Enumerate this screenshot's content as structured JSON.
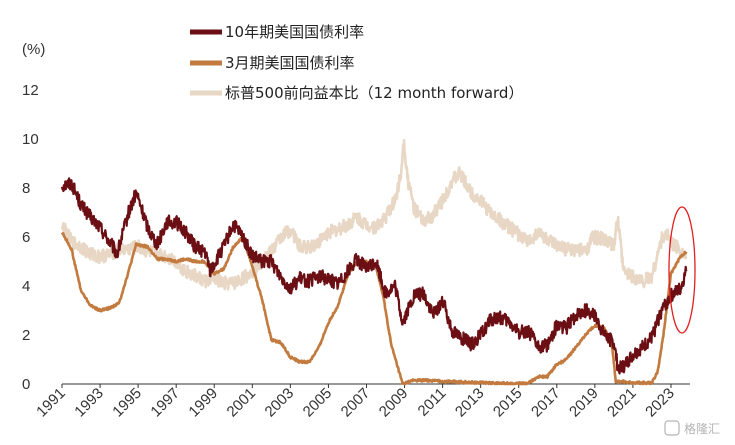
{
  "chart_data": {
    "type": "line",
    "unit_label": "(%)",
    "xlim": [
      1991,
      2024
    ],
    "ylim": [
      0,
      12
    ],
    "yticks": [
      0,
      2,
      4,
      6,
      8,
      10,
      12
    ],
    "xticks": [
      "1991",
      "1993",
      "1995",
      "1997",
      "1999",
      "2001",
      "2003",
      "2005",
      "2007",
      "2009",
      "2011",
      "2013",
      "2015",
      "2017",
      "2019",
      "2021",
      "2023"
    ],
    "legend_position": "top",
    "series": [
      {
        "name": "10年期美国国债利率",
        "color": "#6b0f14",
        "x": [
          1991.0,
          1991.5,
          1992.0,
          1992.5,
          1993.0,
          1993.5,
          1993.9,
          1994.5,
          1994.9,
          1995.5,
          1996.0,
          1996.5,
          1997.0,
          1997.5,
          1998.0,
          1998.5,
          1998.8,
          1999.5,
          2000.0,
          2000.5,
          2001.0,
          2001.5,
          2002.0,
          2002.5,
          2003.0,
          2003.5,
          2004.0,
          2004.5,
          2005.0,
          2005.5,
          2006.0,
          2006.5,
          2007.0,
          2007.5,
          2008.0,
          2008.5,
          2008.9,
          2009.5,
          2010.0,
          2010.5,
          2011.0,
          2011.5,
          2012.0,
          2012.5,
          2013.0,
          2013.5,
          2014.0,
          2014.5,
          2015.0,
          2015.5,
          2016.0,
          2016.5,
          2017.0,
          2017.5,
          2018.0,
          2018.5,
          2018.9,
          2019.5,
          2020.0,
          2020.2,
          2020.5,
          2021.0,
          2021.5,
          2022.0,
          2022.5,
          2023.0,
          2023.5,
          2023.8
        ],
        "values": [
          8.1,
          8.2,
          7.3,
          6.8,
          6.4,
          5.8,
          5.3,
          7.0,
          7.8,
          6.4,
          5.7,
          6.6,
          6.6,
          6.2,
          5.6,
          5.4,
          4.6,
          5.6,
          6.5,
          6.0,
          5.2,
          5.0,
          5.0,
          4.4,
          3.9,
          4.3,
          4.2,
          4.4,
          4.3,
          4.1,
          4.6,
          5.1,
          4.7,
          5.0,
          3.7,
          4.0,
          2.5,
          3.6,
          3.7,
          2.8,
          3.4,
          2.2,
          1.9,
          1.6,
          2.0,
          2.6,
          2.7,
          2.5,
          2.1,
          2.2,
          1.5,
          1.6,
          2.4,
          2.3,
          2.8,
          3.0,
          2.9,
          2.0,
          1.7,
          0.7,
          0.7,
          1.2,
          1.5,
          1.9,
          3.0,
          3.6,
          3.9,
          4.6
        ]
      },
      {
        "name": "3月期美国国债利率",
        "color": "#c27a3e",
        "x": [
          1991.0,
          1991.5,
          1992.0,
          1992.5,
          1993.0,
          1993.5,
          1994.0,
          1994.5,
          1994.9,
          1995.5,
          1996.0,
          1996.5,
          1997.0,
          1997.5,
          1998.0,
          1998.5,
          1999.0,
          1999.5,
          2000.0,
          2000.5,
          2001.0,
          2001.5,
          2002.0,
          2002.5,
          2003.0,
          2003.5,
          2004.0,
          2004.5,
          2005.0,
          2005.5,
          2006.0,
          2006.5,
          2007.0,
          2007.5,
          2007.9,
          2008.3,
          2008.9,
          2009.5,
          2010.0,
          2012.0,
          2014.0,
          2015.5,
          2016.0,
          2016.5,
          2017.0,
          2017.5,
          2018.0,
          2018.5,
          2019.0,
          2019.5,
          2019.9,
          2020.1,
          2020.5,
          2021.0,
          2022.0,
          2022.3,
          2022.6,
          2023.0,
          2023.5,
          2023.8
        ],
        "values": [
          6.2,
          5.5,
          3.8,
          3.2,
          3.0,
          3.1,
          3.3,
          4.6,
          5.7,
          5.6,
          5.1,
          5.1,
          5.0,
          5.1,
          5.0,
          5.0,
          4.5,
          4.7,
          5.6,
          6.0,
          4.8,
          3.5,
          1.8,
          1.7,
          1.1,
          0.9,
          0.9,
          1.5,
          2.5,
          3.2,
          4.4,
          5.0,
          5.0,
          4.8,
          3.5,
          1.6,
          0.0,
          0.15,
          0.15,
          0.08,
          0.03,
          0.02,
          0.3,
          0.3,
          0.8,
          1.0,
          1.5,
          2.0,
          2.4,
          2.3,
          1.6,
          0.1,
          0.1,
          0.05,
          0.05,
          0.5,
          2.0,
          4.5,
          5.2,
          5.4
        ]
      },
      {
        "name": "标普500前向益本比（12 month forward）",
        "color": "#e8d7c5",
        "x": [
          1991.0,
          1991.5,
          1992.0,
          1992.5,
          1993.0,
          1993.5,
          1994.0,
          1994.5,
          1995.0,
          1995.5,
          1996.0,
          1996.5,
          1997.0,
          1997.5,
          1998.0,
          1998.5,
          1999.0,
          1999.5,
          2000.0,
          2000.5,
          2001.0,
          2001.5,
          2002.0,
          2002.5,
          2003.0,
          2003.5,
          2004.0,
          2004.5,
          2005.0,
          2005.5,
          2006.0,
          2006.5,
          2007.0,
          2007.5,
          2008.0,
          2008.5,
          2008.8,
          2008.95,
          2009.2,
          2009.5,
          2010.0,
          2010.5,
          2011.0,
          2011.5,
          2011.9,
          2012.5,
          2013.0,
          2013.5,
          2014.0,
          2014.5,
          2015.0,
          2015.5,
          2016.0,
          2016.5,
          2017.0,
          2017.5,
          2018.0,
          2018.5,
          2018.9,
          2019.5,
          2020.0,
          2020.2,
          2020.5,
          2021.0,
          2021.5,
          2022.0,
          2022.5,
          2022.8,
          2023.0,
          2023.5,
          2023.8
        ],
        "values": [
          6.5,
          5.8,
          5.6,
          5.3,
          5.2,
          5.3,
          5.5,
          5.5,
          5.6,
          5.4,
          5.3,
          5.2,
          5.0,
          4.6,
          4.4,
          4.2,
          4.3,
          4.1,
          4.1,
          4.3,
          4.6,
          5.0,
          5.4,
          6.0,
          6.3,
          5.6,
          5.6,
          5.8,
          6.2,
          6.3,
          6.5,
          6.8,
          6.5,
          6.4,
          6.8,
          7.5,
          8.5,
          10.0,
          8.2,
          7.2,
          6.6,
          6.9,
          7.5,
          8.3,
          8.6,
          7.8,
          7.5,
          7.0,
          6.7,
          6.4,
          6.1,
          5.8,
          6.2,
          5.9,
          5.6,
          5.5,
          5.5,
          5.4,
          6.0,
          5.9,
          5.6,
          6.8,
          4.6,
          4.4,
          4.2,
          4.4,
          5.9,
          6.1,
          5.8,
          5.5,
          5.2
        ]
      }
    ]
  },
  "watermark": "格隆汇"
}
